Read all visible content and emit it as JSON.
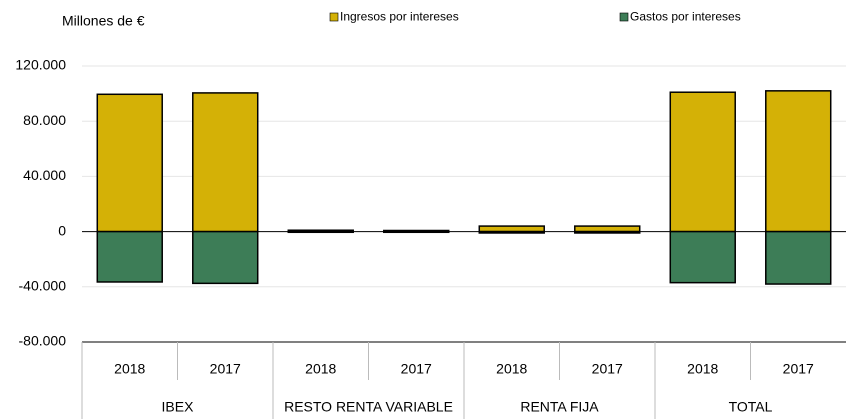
{
  "chart_data": {
    "type": "bar",
    "stacked": true,
    "y_axis_label": "Millones de €",
    "categories": [
      "2018",
      "2017",
      "2018",
      "2017",
      "2018",
      "2017",
      "2018",
      "2017"
    ],
    "groups": [
      "IBEX",
      "RESTO RENTA VARIABLE",
      "RENTA FIJA",
      "TOTAL"
    ],
    "series": [
      {
        "name": "Ingresos por intereses",
        "color": "#d4b106",
        "values": [
          99500,
          100500,
          1000,
          800,
          4000,
          4000,
          101000,
          102000
        ]
      },
      {
        "name": "Gastos por intereses",
        "color": "#3d7d57",
        "values": [
          -36500,
          -37500,
          -500,
          -500,
          -1000,
          -1000,
          -37000,
          -38000
        ]
      }
    ],
    "ylim": [
      -80000,
      120000
    ],
    "yticks": [
      {
        "value": -80000,
        "label": "-80.000"
      },
      {
        "value": -40000,
        "label": "-40.000"
      },
      0,
      {
        "value": 40000,
        "label": "40.000"
      },
      {
        "value": 80000,
        "label": "80.000"
      },
      {
        "value": 120000,
        "label": "120.000"
      }
    ],
    "grid": true,
    "legend": "top"
  }
}
